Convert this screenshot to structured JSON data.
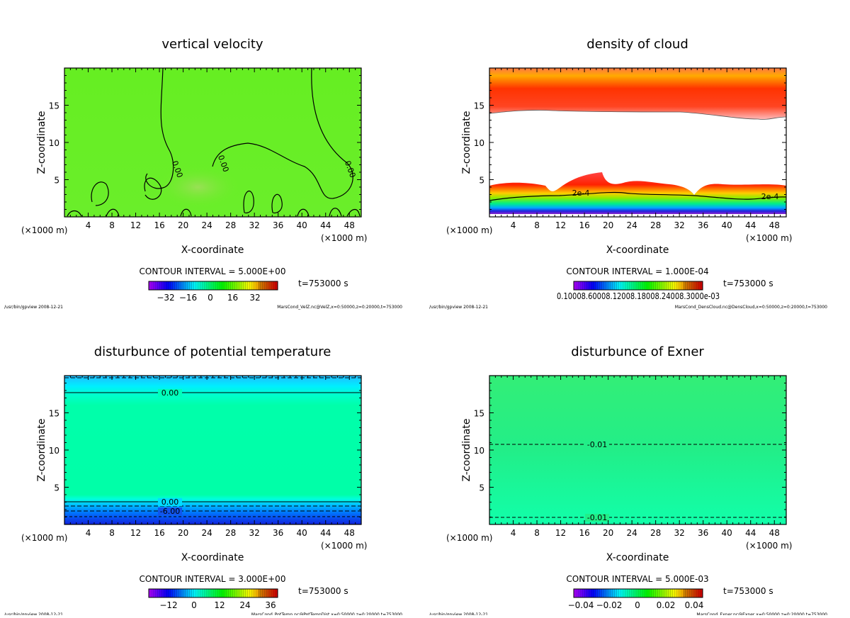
{
  "chart_data": [
    {
      "type": "heatmap",
      "title": "vertical velocity",
      "xlabel": "X-coordinate",
      "ylabel": "Z-coordinate",
      "x_unit": "(×1000 m)",
      "y_unit": "(×1000 m)",
      "xlim": [
        0,
        50
      ],
      "ylim": [
        0,
        20
      ],
      "xticks": [
        "4",
        "8",
        "12",
        "16",
        "20",
        "24",
        "28",
        "32",
        "36",
        "40",
        "44",
        "48"
      ],
      "yticks": [
        "5",
        "10",
        "15"
      ],
      "contour_labels": [
        "0.00",
        "0.00",
        "0.00"
      ],
      "contour_interval": "CONTOUR INTERVAL = 5.000E+00",
      "colorbar_ticks": [
        "−32",
        "−16",
        "0",
        "16",
        "32"
      ],
      "time": "t=753000 s",
      "footer_left": "/usr/bin/gpview  2008-12-21",
      "footer_right": "MarsCond_VelZ.nc@VelZ,x=0:50000,z=0:20000,t=753000",
      "fill_color": "#66ee22"
    },
    {
      "type": "heatmap",
      "title": "density of cloud",
      "xlabel": "X-coordinate",
      "ylabel": "Z-coordinate",
      "x_unit": "(×1000 m)",
      "y_unit": "(×1000 m)",
      "xlim": [
        0,
        50
      ],
      "ylim": [
        0,
        20
      ],
      "xticks": [
        "4",
        "8",
        "12",
        "16",
        "20",
        "24",
        "28",
        "32",
        "36",
        "40",
        "44",
        "48"
      ],
      "yticks": [
        "5",
        "10",
        "15"
      ],
      "contour_labels": [
        "2e-4",
        "2e-4"
      ],
      "contour_interval": "CONTOUR INTERVAL = 1.000E-04",
      "colorbar_ticks": [
        "0.10008.60008.12008.18008.24008.3000e-03"
      ],
      "time": "t=753000 s",
      "footer_left": "/usr/bin/gpview  2008-12-21",
      "footer_right": "MarsCond_DensCloud.nc@DensCloud,x=0:50000,z=0:20000,t=753000",
      "fill_color": "#ffffff"
    },
    {
      "type": "heatmap",
      "title": "disturbunce of potential temperature",
      "xlabel": "X-coordinate",
      "ylabel": "Z-coordinate",
      "x_unit": "(×1000 m)",
      "y_unit": "(×1000 m)",
      "xlim": [
        0,
        50
      ],
      "ylim": [
        0,
        20
      ],
      "xticks": [
        "4",
        "8",
        "12",
        "16",
        "20",
        "24",
        "28",
        "32",
        "36",
        "40",
        "44",
        "48"
      ],
      "yticks": [
        "5",
        "10",
        "15"
      ],
      "contour_labels": [
        "0.00",
        "0.00",
        "-6.00"
      ],
      "contour_interval": "CONTOUR INTERVAL = 3.000E+00",
      "colorbar_ticks": [
        "−12",
        "0",
        "12",
        "24",
        "36"
      ],
      "time": "t=753000 s",
      "footer_left": "/usr/bin/gpview  2008-12-21",
      "footer_right": "MarsCond_PotTemp.nc@PotTempDist,x=0:50000,z=0:20000,t=753000",
      "fill_color": "#00ffaa"
    },
    {
      "type": "heatmap",
      "title": "disturbunce of Exner",
      "xlabel": "X-coordinate",
      "ylabel": "Z-coordinate",
      "x_unit": "(×1000 m)",
      "y_unit": "(×1000 m)",
      "xlim": [
        0,
        50
      ],
      "ylim": [
        0,
        20
      ],
      "xticks": [
        "4",
        "8",
        "12",
        "16",
        "20",
        "24",
        "28",
        "32",
        "36",
        "40",
        "44",
        "48"
      ],
      "yticks": [
        "5",
        "10",
        "15"
      ],
      "contour_labels": [
        "-0.01",
        "-0.01"
      ],
      "contour_interval": "CONTOUR INTERVAL = 5.000E-03",
      "colorbar_ticks": [
        "−0.04",
        "−0.02",
        "0",
        "0.02",
        "0.04"
      ],
      "time": "t=753000 s",
      "footer_left": "/usr/bin/gpview  2008-12-21",
      "footer_right": "MarsCond_Exner.nc@Exner,x=0:50000,z=0:20000,t=753000",
      "fill_color": "#22ee88"
    }
  ]
}
